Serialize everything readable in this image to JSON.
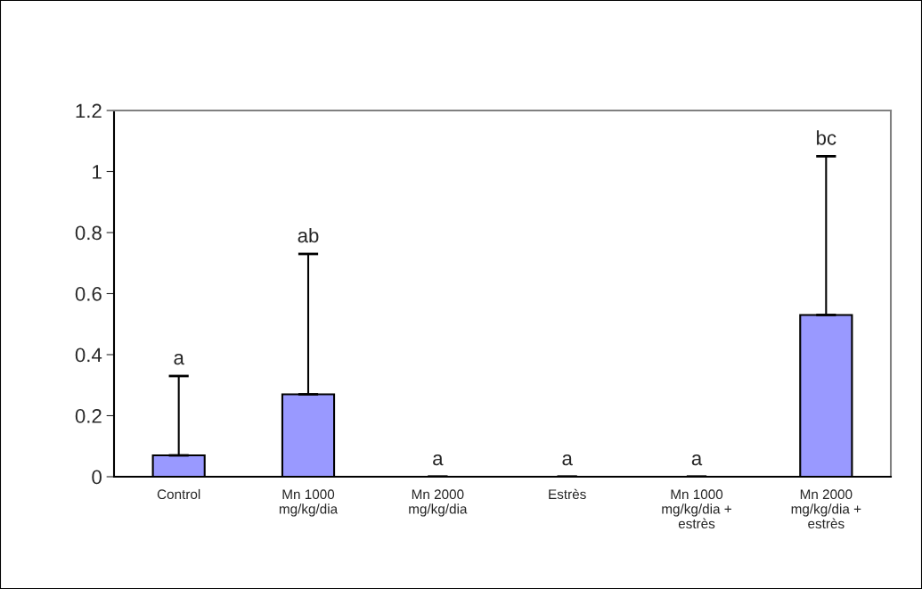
{
  "chart_data": {
    "type": "bar",
    "categories": [
      "Control",
      "Mn 1000\nmg/kg/dia",
      "Mn 2000\nmg/kg/dia",
      "Estrès",
      "Mn 1000\nmg/kg/dia +\nestrès",
      "Mn 2000\nmg/kg/dia +\nestrès"
    ],
    "values": [
      0.07,
      0.27,
      0,
      0,
      0,
      0.53
    ],
    "color": "#9999ff",
    "errors": [
      [
        0.07,
        0.33
      ],
      [
        0.27,
        0.73
      ],
      0,
      0,
      0,
      [
        0.53,
        1.05
      ]
    ],
    "ylim": [
      0,
      1.2
    ],
    "yticks": [
      0,
      0.2,
      0.4,
      0.6,
      0.8,
      1,
      1.2
    ],
    "annotations": [
      {
        "text": "a",
        "x": "Control",
        "y": 0.33
      },
      {
        "text": "ab",
        "x": "Mn 1000\nmg/kg/dia",
        "y": 0.73
      },
      {
        "text": "a",
        "x": "Mn 2000\nmg/kg/dia",
        "y": 0
      },
      {
        "text": "a",
        "x": "Estrès",
        "y": 0
      },
      {
        "text": "a",
        "x": "Mn 1000\nmg/kg/dia +\nestrès",
        "y": 0
      },
      {
        "text": "bc",
        "x": "Mn 2000\nmg/kg/dia +\nestrès",
        "y": 1.05
      }
    ],
    "grid": false,
    "legend": false
  }
}
